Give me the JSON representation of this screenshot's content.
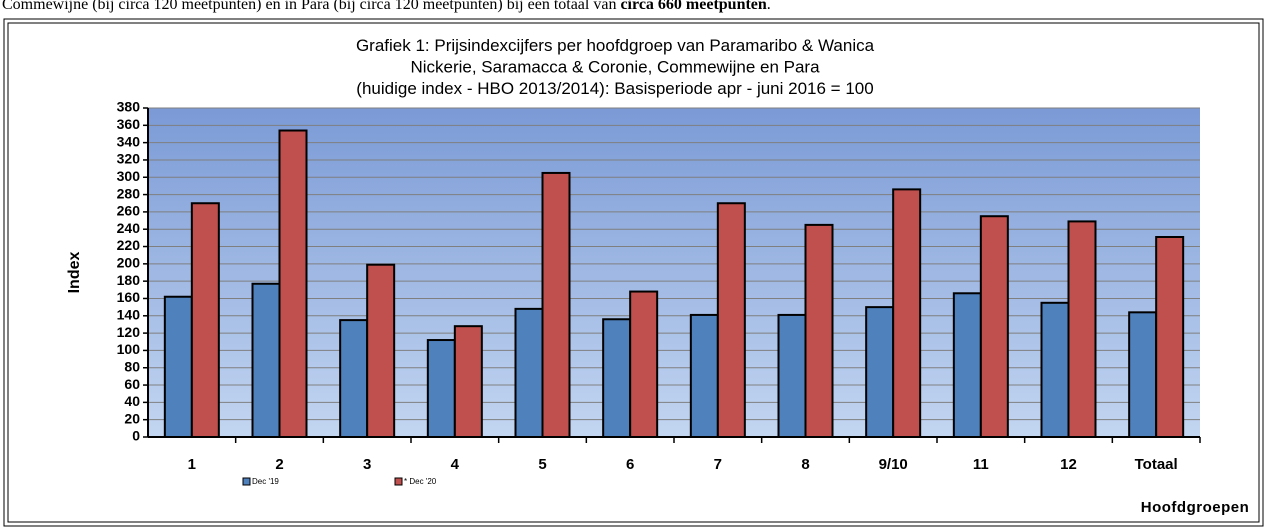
{
  "caption": {
    "text": "Commewijne (bij circa 120 meetpunten) en in Para (bij circa 120 meetpunten) bij een totaal van ",
    "bold": "circa 660 meetpunten",
    "end": "."
  },
  "chart_data": {
    "type": "bar",
    "title": [
      "Grafiek 1: Prijsindexcijfers per hoofdgroep van Paramaribo & Wanica",
      "Nickerie, Saramacca & Coronie, Commewijne en Para",
      "(huidige index - HBO 2013/2014): Basisperiode apr - juni 2016 = 100"
    ],
    "y_label": "Index",
    "x_label": "Hoofdgroepen",
    "categories": [
      "1",
      "2",
      "3",
      "4",
      "5",
      "6",
      "7",
      "8",
      "9/10",
      "11",
      "12",
      "Totaal"
    ],
    "series": [
      {
        "name": "Dec '19",
        "color": "#4f81bd",
        "values": [
          162,
          177,
          135,
          112,
          148,
          136,
          141,
          141,
          150,
          166,
          155,
          144
        ]
      },
      {
        "name": "* Dec '20",
        "color": "#c0504d",
        "values": [
          270,
          354,
          199,
          128,
          305,
          168,
          270,
          245,
          286,
          255,
          249,
          231
        ]
      }
    ],
    "ylim": [
      0,
      380
    ],
    "yticks": [
      0,
      20,
      40,
      60,
      80,
      100,
      120,
      140,
      160,
      180,
      200,
      220,
      240,
      260,
      280,
      300,
      320,
      340,
      360,
      380
    ],
    "grid": true
  }
}
